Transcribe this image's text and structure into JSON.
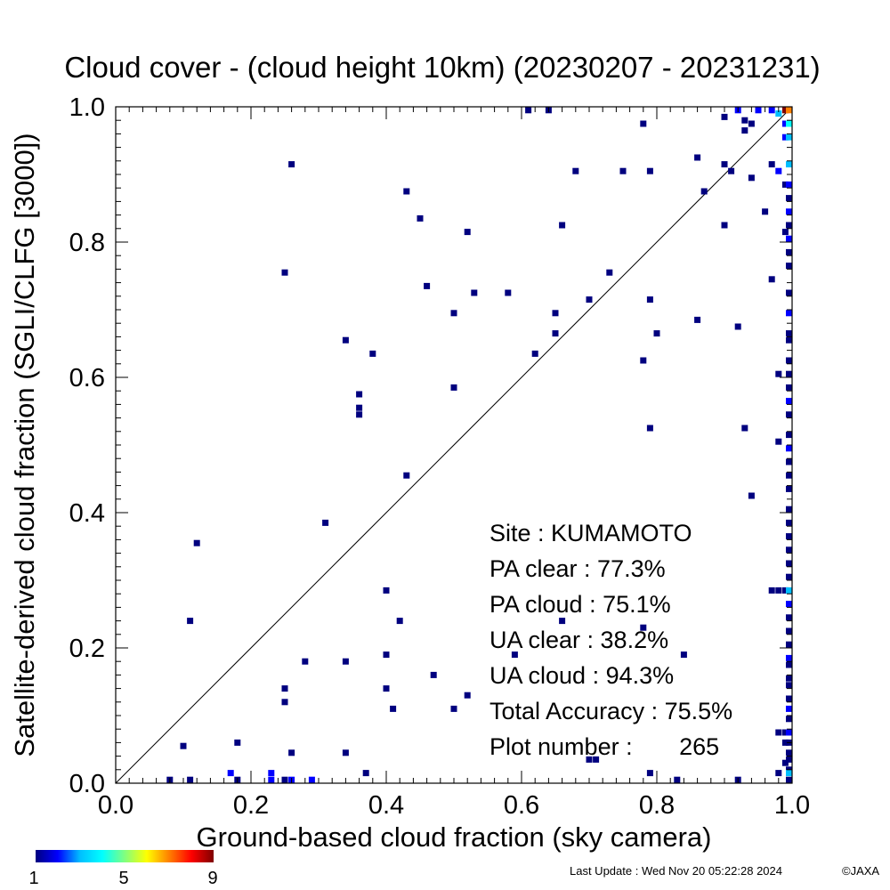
{
  "chart_data": {
    "type": "heatmap",
    "title": "Cloud cover - (cloud height 10km)  (20230207 - 20231231)",
    "xlabel": "Ground-based cloud fraction (sky camera)",
    "ylabel": "Satellite-derived cloud fraction (SGLI/CLFG [3000])",
    "xlim": [
      0.0,
      1.0
    ],
    "ylim": [
      0.0,
      1.0
    ],
    "x_ticks": [
      "0.0",
      "0.2",
      "0.4",
      "0.6",
      "0.8",
      "1.0"
    ],
    "y_ticks": [
      "0.0",
      "0.2",
      "0.4",
      "0.6",
      "0.8",
      "1.0"
    ],
    "reference_line": "y = x",
    "grid": false,
    "colorbar": {
      "min": 1,
      "max": 9,
      "tick_labels": [
        "1",
        "5",
        "9"
      ],
      "colors": [
        "#00007f",
        "#0000ff",
        "#00bfff",
        "#00ffff",
        "#80ff80",
        "#ffff00",
        "#ff8000",
        "#ff0000",
        "#7f0000"
      ]
    },
    "stats": {
      "site": "Site : KUMAMOTO",
      "pa_clear": "PA clear :  77.3%",
      "pa_cloud": "PA cloud :  75.1%",
      "ua_clear": "UA clear :  38.2%",
      "ua_cloud": "UA cloud :  94.3%",
      "total_accuracy": "Total Accuracy :  75.5%",
      "plot_number": "Plot number :       265"
    },
    "points": [
      {
        "x": 0.61,
        "y": 0.995,
        "c": 1
      },
      {
        "x": 0.64,
        "y": 0.995,
        "c": 1
      },
      {
        "x": 0.9,
        "y": 0.985,
        "c": 1
      },
      {
        "x": 0.93,
        "y": 0.98,
        "c": 1
      },
      {
        "x": 0.95,
        "y": 0.995,
        "c": 2
      },
      {
        "x": 0.92,
        "y": 0.995,
        "c": 2
      },
      {
        "x": 0.97,
        "y": 0.995,
        "c": 2
      },
      {
        "x": 0.98,
        "y": 0.99,
        "c": 3
      },
      {
        "x": 0.99,
        "y": 0.995,
        "c": 9
      },
      {
        "x": 1.0,
        "y": 0.995,
        "c": 7
      },
      {
        "x": 0.78,
        "y": 0.975,
        "c": 1
      },
      {
        "x": 0.94,
        "y": 0.975,
        "c": 1
      },
      {
        "x": 0.93,
        "y": 0.965,
        "c": 1
      },
      {
        "x": 0.99,
        "y": 0.975,
        "c": 2
      },
      {
        "x": 1.0,
        "y": 0.975,
        "c": 4
      },
      {
        "x": 0.99,
        "y": 0.955,
        "c": 2
      },
      {
        "x": 1.0,
        "y": 0.955,
        "c": 3
      },
      {
        "x": 0.26,
        "y": 0.915,
        "c": 1
      },
      {
        "x": 0.68,
        "y": 0.905,
        "c": 1
      },
      {
        "x": 0.75,
        "y": 0.905,
        "c": 1
      },
      {
        "x": 0.79,
        "y": 0.905,
        "c": 1
      },
      {
        "x": 0.86,
        "y": 0.925,
        "c": 1
      },
      {
        "x": 0.9,
        "y": 0.915,
        "c": 1
      },
      {
        "x": 0.91,
        "y": 0.905,
        "c": 1
      },
      {
        "x": 0.97,
        "y": 0.915,
        "c": 1
      },
      {
        "x": 0.94,
        "y": 0.895,
        "c": 1
      },
      {
        "x": 0.98,
        "y": 0.905,
        "c": 2
      },
      {
        "x": 1.0,
        "y": 0.915,
        "c": 3
      },
      {
        "x": 0.99,
        "y": 0.885,
        "c": 1
      },
      {
        "x": 1.0,
        "y": 0.885,
        "c": 2
      },
      {
        "x": 0.43,
        "y": 0.875,
        "c": 1
      },
      {
        "x": 0.87,
        "y": 0.875,
        "c": 1
      },
      {
        "x": 1.0,
        "y": 0.865,
        "c": 1
      },
      {
        "x": 0.45,
        "y": 0.835,
        "c": 1
      },
      {
        "x": 0.52,
        "y": 0.815,
        "c": 1
      },
      {
        "x": 0.66,
        "y": 0.825,
        "c": 1
      },
      {
        "x": 0.9,
        "y": 0.825,
        "c": 1
      },
      {
        "x": 0.96,
        "y": 0.845,
        "c": 1
      },
      {
        "x": 1.0,
        "y": 0.845,
        "c": 2
      },
      {
        "x": 0.99,
        "y": 0.815,
        "c": 1
      },
      {
        "x": 1.0,
        "y": 0.805,
        "c": 2
      },
      {
        "x": 1.0,
        "y": 0.825,
        "c": 1
      },
      {
        "x": 1.0,
        "y": 0.785,
        "c": 1
      },
      {
        "x": 0.25,
        "y": 0.755,
        "c": 1
      },
      {
        "x": 0.46,
        "y": 0.735,
        "c": 1
      },
      {
        "x": 0.53,
        "y": 0.725,
        "c": 1
      },
      {
        "x": 0.58,
        "y": 0.725,
        "c": 1
      },
      {
        "x": 0.7,
        "y": 0.715,
        "c": 1
      },
      {
        "x": 0.73,
        "y": 0.755,
        "c": 1
      },
      {
        "x": 0.79,
        "y": 0.715,
        "c": 1
      },
      {
        "x": 0.97,
        "y": 0.745,
        "c": 1
      },
      {
        "x": 1.0,
        "y": 0.765,
        "c": 1
      },
      {
        "x": 1.0,
        "y": 0.725,
        "c": 1
      },
      {
        "x": 0.5,
        "y": 0.695,
        "c": 1
      },
      {
        "x": 0.65,
        "y": 0.695,
        "c": 1
      },
      {
        "x": 0.86,
        "y": 0.685,
        "c": 1
      },
      {
        "x": 0.92,
        "y": 0.675,
        "c": 1
      },
      {
        "x": 1.0,
        "y": 0.695,
        "c": 2
      },
      {
        "x": 0.34,
        "y": 0.655,
        "c": 1
      },
      {
        "x": 0.65,
        "y": 0.665,
        "c": 1
      },
      {
        "x": 0.8,
        "y": 0.665,
        "c": 1
      },
      {
        "x": 1.0,
        "y": 0.665,
        "c": 1
      },
      {
        "x": 1.0,
        "y": 0.655,
        "c": 1
      },
      {
        "x": 0.38,
        "y": 0.635,
        "c": 1
      },
      {
        "x": 0.62,
        "y": 0.635,
        "c": 1
      },
      {
        "x": 0.78,
        "y": 0.625,
        "c": 1
      },
      {
        "x": 1.0,
        "y": 0.625,
        "c": 1
      },
      {
        "x": 0.98,
        "y": 0.605,
        "c": 1
      },
      {
        "x": 1.0,
        "y": 0.605,
        "c": 1
      },
      {
        "x": 0.36,
        "y": 0.575,
        "c": 1
      },
      {
        "x": 0.5,
        "y": 0.585,
        "c": 1
      },
      {
        "x": 1.0,
        "y": 0.585,
        "c": 1
      },
      {
        "x": 0.36,
        "y": 0.555,
        "c": 1
      },
      {
        "x": 0.36,
        "y": 0.545,
        "c": 1
      },
      {
        "x": 1.0,
        "y": 0.565,
        "c": 2
      },
      {
        "x": 1.0,
        "y": 0.545,
        "c": 1
      },
      {
        "x": 0.79,
        "y": 0.525,
        "c": 1
      },
      {
        "x": 0.93,
        "y": 0.525,
        "c": 1
      },
      {
        "x": 0.98,
        "y": 0.505,
        "c": 1
      },
      {
        "x": 1.0,
        "y": 0.515,
        "c": 1
      },
      {
        "x": 1.0,
        "y": 0.495,
        "c": 2
      },
      {
        "x": 1.0,
        "y": 0.475,
        "c": 1
      },
      {
        "x": 0.43,
        "y": 0.455,
        "c": 1
      },
      {
        "x": 1.0,
        "y": 0.455,
        "c": 1
      },
      {
        "x": 0.94,
        "y": 0.425,
        "c": 1
      },
      {
        "x": 1.0,
        "y": 0.435,
        "c": 1
      },
      {
        "x": 1.0,
        "y": 0.405,
        "c": 1
      },
      {
        "x": 0.31,
        "y": 0.385,
        "c": 1
      },
      {
        "x": 1.0,
        "y": 0.385,
        "c": 1
      },
      {
        "x": 1.0,
        "y": 0.365,
        "c": 1
      },
      {
        "x": 0.12,
        "y": 0.355,
        "c": 1
      },
      {
        "x": 1.0,
        "y": 0.345,
        "c": 1
      },
      {
        "x": 1.0,
        "y": 0.325,
        "c": 1
      },
      {
        "x": 1.0,
        "y": 0.305,
        "c": 1
      },
      {
        "x": 0.4,
        "y": 0.285,
        "c": 1
      },
      {
        "x": 0.97,
        "y": 0.285,
        "c": 1
      },
      {
        "x": 0.98,
        "y": 0.285,
        "c": 1
      },
      {
        "x": 0.99,
        "y": 0.285,
        "c": 1
      },
      {
        "x": 1.0,
        "y": 0.285,
        "c": 3
      },
      {
        "x": 1.0,
        "y": 0.265,
        "c": 2
      },
      {
        "x": 0.11,
        "y": 0.24,
        "c": 1
      },
      {
        "x": 0.42,
        "y": 0.24,
        "c": 1
      },
      {
        "x": 0.66,
        "y": 0.24,
        "c": 1
      },
      {
        "x": 1.0,
        "y": 0.245,
        "c": 1
      },
      {
        "x": 0.78,
        "y": 0.23,
        "c": 1
      },
      {
        "x": 1.0,
        "y": 0.225,
        "c": 1
      },
      {
        "x": 1.0,
        "y": 0.205,
        "c": 1
      },
      {
        "x": 0.4,
        "y": 0.19,
        "c": 1
      },
      {
        "x": 0.59,
        "y": 0.19,
        "c": 1
      },
      {
        "x": 0.84,
        "y": 0.19,
        "c": 1
      },
      {
        "x": 1.0,
        "y": 0.185,
        "c": 2
      },
      {
        "x": 0.28,
        "y": 0.18,
        "c": 1
      },
      {
        "x": 0.34,
        "y": 0.18,
        "c": 1
      },
      {
        "x": 1.0,
        "y": 0.175,
        "c": 1
      },
      {
        "x": 0.47,
        "y": 0.16,
        "c": 1
      },
      {
        "x": 1.0,
        "y": 0.155,
        "c": 1
      },
      {
        "x": 0.25,
        "y": 0.14,
        "c": 1
      },
      {
        "x": 0.4,
        "y": 0.14,
        "c": 1
      },
      {
        "x": 1.0,
        "y": 0.145,
        "c": 1
      },
      {
        "x": 0.52,
        "y": 0.13,
        "c": 1
      },
      {
        "x": 0.25,
        "y": 0.12,
        "c": 1
      },
      {
        "x": 1.0,
        "y": 0.125,
        "c": 1
      },
      {
        "x": 0.41,
        "y": 0.11,
        "c": 1
      },
      {
        "x": 0.5,
        "y": 0.11,
        "c": 1
      },
      {
        "x": 1.0,
        "y": 0.11,
        "c": 2
      },
      {
        "x": 1.0,
        "y": 0.095,
        "c": 1
      },
      {
        "x": 0.98,
        "y": 0.075,
        "c": 1
      },
      {
        "x": 0.99,
        "y": 0.075,
        "c": 1
      },
      {
        "x": 1.0,
        "y": 0.075,
        "c": 2
      },
      {
        "x": 0.18,
        "y": 0.06,
        "c": 1
      },
      {
        "x": 0.1,
        "y": 0.055,
        "c": 1
      },
      {
        "x": 0.99,
        "y": 0.06,
        "c": 1
      },
      {
        "x": 1.0,
        "y": 0.06,
        "c": 1
      },
      {
        "x": 0.26,
        "y": 0.045,
        "c": 1
      },
      {
        "x": 0.34,
        "y": 0.045,
        "c": 1
      },
      {
        "x": 1.0,
        "y": 0.045,
        "c": 1
      },
      {
        "x": 0.7,
        "y": 0.035,
        "c": 1
      },
      {
        "x": 0.71,
        "y": 0.035,
        "c": 1
      },
      {
        "x": 1.0,
        "y": 0.035,
        "c": 1
      },
      {
        "x": 0.99,
        "y": 0.03,
        "c": 1
      },
      {
        "x": 0.17,
        "y": 0.015,
        "c": 2
      },
      {
        "x": 0.23,
        "y": 0.015,
        "c": 2
      },
      {
        "x": 0.37,
        "y": 0.015,
        "c": 1
      },
      {
        "x": 0.79,
        "y": 0.015,
        "c": 1
      },
      {
        "x": 0.98,
        "y": 0.015,
        "c": 1
      },
      {
        "x": 1.0,
        "y": 0.02,
        "c": 1
      },
      {
        "x": 1.0,
        "y": 0.015,
        "c": 3
      },
      {
        "x": 0.08,
        "y": 0.005,
        "c": 1
      },
      {
        "x": 0.11,
        "y": 0.005,
        "c": 1
      },
      {
        "x": 0.18,
        "y": 0.005,
        "c": 1
      },
      {
        "x": 0.23,
        "y": 0.005,
        "c": 2
      },
      {
        "x": 0.25,
        "y": 0.005,
        "c": 1
      },
      {
        "x": 0.26,
        "y": 0.005,
        "c": 2
      },
      {
        "x": 0.29,
        "y": 0.005,
        "c": 2
      },
      {
        "x": 0.83,
        "y": 0.005,
        "c": 1
      },
      {
        "x": 0.92,
        "y": 0.005,
        "c": 1
      },
      {
        "x": 1.0,
        "y": 0.005,
        "c": 1
      }
    ]
  },
  "footer": {
    "last_update": "Last Update : Wed Nov 20 05:22:28 2024",
    "copyright": "©JAXA"
  }
}
